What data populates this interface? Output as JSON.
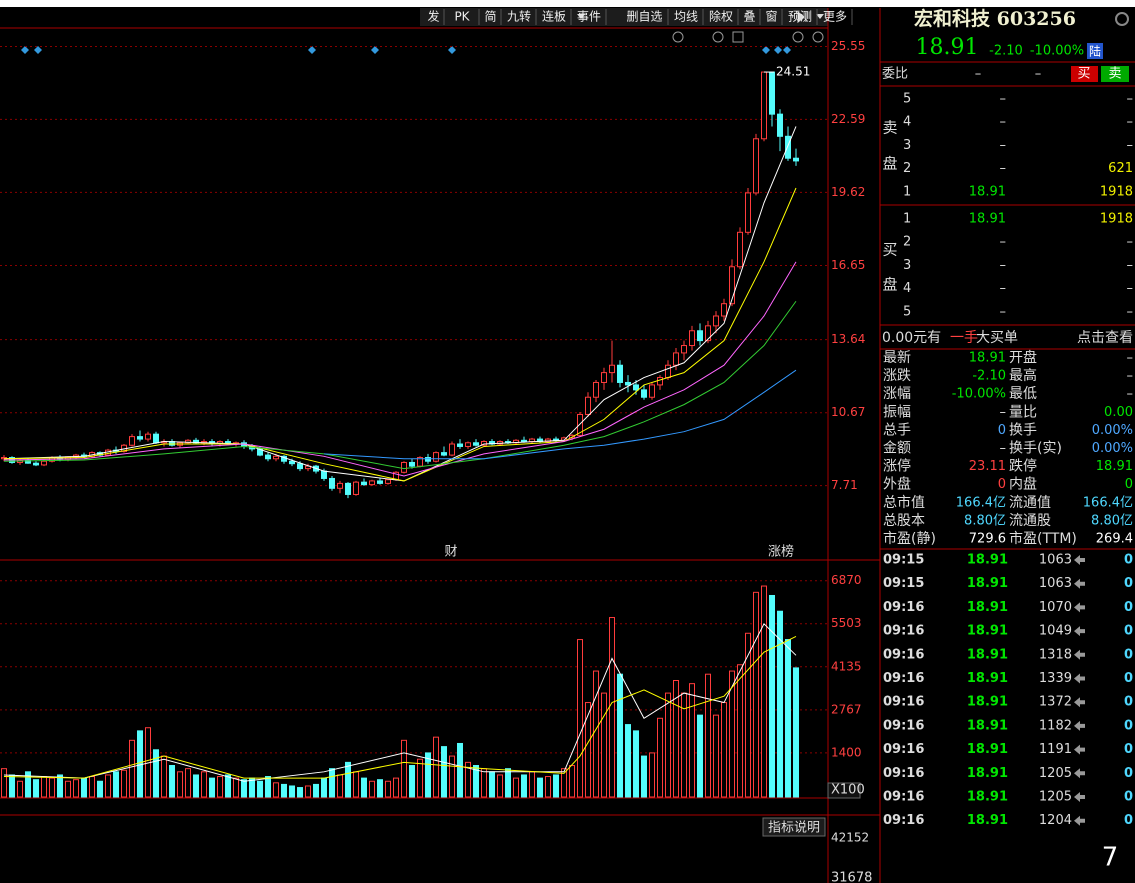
{
  "toolbar": [
    "发",
    "PK",
    "简",
    "九转",
    "连板",
    "事件",
    "删自选",
    "均线",
    "除权",
    "叠",
    "窗",
    "预测",
    "更多"
  ],
  "chart_data": [
    {
      "type": "candlestick",
      "ylim": [
        5.5,
        26.3
      ],
      "yticks": [
        25.55,
        22.59,
        19.62,
        16.65,
        13.64,
        10.67,
        7.71
      ],
      "up_color": "#ff3c3c",
      "down_color": "#54fcfc",
      "grid": true,
      "high_label": 24.51,
      "events": [
        "财",
        "涨榜"
      ],
      "candles": [
        [
          8.8,
          8.95,
          8.7,
          8.85
        ],
        [
          8.85,
          8.9,
          8.6,
          8.65
        ],
        [
          8.65,
          8.8,
          8.55,
          8.75
        ],
        [
          8.75,
          8.85,
          8.6,
          8.62
        ],
        [
          8.62,
          8.7,
          8.5,
          8.55
        ],
        [
          8.55,
          8.75,
          8.5,
          8.7
        ],
        [
          8.7,
          8.9,
          8.65,
          8.85
        ],
        [
          8.85,
          8.95,
          8.7,
          8.78
        ],
        [
          8.78,
          8.9,
          8.7,
          8.88
        ],
        [
          8.88,
          9.0,
          8.8,
          8.95
        ],
        [
          8.95,
          9.05,
          8.85,
          8.9
        ],
        [
          8.9,
          9.1,
          8.85,
          9.05
        ],
        [
          9.05,
          9.1,
          8.9,
          8.95
        ],
        [
          8.95,
          9.2,
          8.9,
          9.15
        ],
        [
          9.15,
          9.3,
          9.0,
          9.1
        ],
        [
          9.1,
          9.4,
          9.05,
          9.35
        ],
        [
          9.35,
          9.8,
          9.3,
          9.7
        ],
        [
          9.7,
          9.95,
          9.5,
          9.6
        ],
        [
          9.6,
          9.9,
          9.5,
          9.8
        ],
        [
          9.8,
          9.9,
          9.4,
          9.45
        ],
        [
          9.45,
          9.6,
          9.3,
          9.5
        ],
        [
          9.5,
          9.6,
          9.3,
          9.35
        ],
        [
          9.35,
          9.5,
          9.25,
          9.45
        ],
        [
          9.45,
          9.6,
          9.4,
          9.55
        ],
        [
          9.55,
          9.65,
          9.4,
          9.45
        ],
        [
          9.45,
          9.6,
          9.35,
          9.5
        ],
        [
          9.5,
          9.6,
          9.3,
          9.4
        ],
        [
          9.4,
          9.55,
          9.3,
          9.5
        ],
        [
          9.5,
          9.6,
          9.35,
          9.4
        ],
        [
          9.4,
          9.5,
          9.3,
          9.45
        ],
        [
          9.45,
          9.55,
          9.2,
          9.3
        ],
        [
          9.3,
          9.4,
          9.1,
          9.2
        ],
        [
          9.2,
          9.3,
          8.9,
          8.95
        ],
        [
          8.95,
          9.05,
          8.7,
          8.8
        ],
        [
          8.8,
          9.0,
          8.7,
          8.9
        ],
        [
          8.9,
          8.95,
          8.6,
          8.7
        ],
        [
          8.7,
          8.8,
          8.5,
          8.6
        ],
        [
          8.6,
          8.7,
          8.3,
          8.4
        ],
        [
          8.4,
          8.6,
          8.3,
          8.5
        ],
        [
          8.5,
          8.55,
          8.2,
          8.3
        ],
        [
          8.3,
          8.4,
          7.9,
          8.0
        ],
        [
          8.0,
          8.1,
          7.5,
          7.6
        ],
        [
          7.6,
          7.9,
          7.4,
          7.8
        ],
        [
          7.8,
          7.85,
          7.2,
          7.35
        ],
        [
          7.35,
          7.9,
          7.3,
          7.85
        ],
        [
          7.85,
          8.0,
          7.7,
          7.75
        ],
        [
          7.75,
          7.95,
          7.7,
          7.9
        ],
        [
          7.9,
          8.0,
          7.75,
          7.8
        ],
        [
          7.8,
          8.0,
          7.75,
          7.95
        ],
        [
          7.95,
          8.3,
          7.9,
          8.25
        ],
        [
          8.25,
          8.7,
          8.2,
          8.65
        ],
        [
          8.65,
          8.8,
          8.4,
          8.5
        ],
        [
          8.5,
          8.9,
          8.45,
          8.85
        ],
        [
          8.85,
          9.0,
          8.6,
          8.7
        ],
        [
          8.7,
          9.1,
          8.65,
          9.05
        ],
        [
          9.05,
          9.3,
          8.9,
          8.95
        ],
        [
          8.95,
          9.5,
          8.9,
          9.4
        ],
        [
          9.4,
          9.6,
          9.2,
          9.3
        ],
        [
          9.3,
          9.5,
          9.2,
          9.45
        ],
        [
          9.45,
          9.6,
          9.3,
          9.35
        ],
        [
          9.35,
          9.55,
          9.3,
          9.5
        ],
        [
          9.5,
          9.6,
          9.35,
          9.4
        ],
        [
          9.4,
          9.55,
          9.35,
          9.5
        ],
        [
          9.5,
          9.6,
          9.4,
          9.45
        ],
        [
          9.45,
          9.6,
          9.4,
          9.55
        ],
        [
          9.55,
          9.7,
          9.45,
          9.5
        ],
        [
          9.5,
          9.65,
          9.4,
          9.6
        ],
        [
          9.6,
          9.7,
          9.45,
          9.5
        ],
        [
          9.5,
          9.65,
          9.45,
          9.6
        ],
        [
          9.6,
          9.7,
          9.5,
          9.55
        ],
        [
          9.55,
          9.7,
          9.5,
          9.65
        ],
        [
          9.65,
          9.8,
          9.55,
          9.75
        ],
        [
          9.75,
          10.7,
          9.7,
          10.6
        ],
        [
          10.6,
          11.5,
          10.5,
          11.3
        ],
        [
          11.3,
          12.0,
          11.1,
          11.9
        ],
        [
          11.9,
          12.5,
          11.6,
          12.3
        ],
        [
          12.3,
          13.6,
          11.9,
          12.6
        ],
        [
          12.6,
          12.8,
          11.7,
          11.9
        ],
        [
          11.9,
          12.2,
          11.5,
          11.8
        ],
        [
          11.8,
          12.0,
          11.4,
          11.6
        ],
        [
          11.6,
          11.8,
          11.2,
          11.3
        ],
        [
          11.3,
          11.9,
          11.2,
          11.8
        ],
        [
          11.8,
          12.2,
          11.6,
          12.1
        ],
        [
          12.1,
          12.8,
          12.0,
          12.6
        ],
        [
          12.6,
          13.3,
          12.4,
          13.1
        ],
        [
          13.1,
          13.6,
          12.8,
          13.4
        ],
        [
          13.4,
          14.2,
          13.2,
          14.0
        ],
        [
          14.0,
          14.3,
          13.4,
          13.6
        ],
        [
          13.6,
          14.4,
          13.5,
          14.2
        ],
        [
          14.2,
          14.8,
          13.9,
          14.6
        ],
        [
          14.6,
          15.3,
          14.4,
          15.1
        ],
        [
          15.1,
          16.9,
          15.0,
          16.6
        ],
        [
          16.6,
          18.2,
          16.5,
          18.0
        ],
        [
          18.0,
          19.8,
          17.9,
          19.6
        ],
        [
          19.6,
          22.0,
          19.5,
          21.8
        ],
        [
          21.8,
          24.51,
          21.7,
          24.51
        ],
        [
          24.51,
          24.51,
          22.3,
          22.8
        ],
        [
          22.8,
          23.0,
          21.3,
          21.9
        ],
        [
          21.9,
          22.3,
          20.9,
          21.01
        ],
        [
          21.01,
          21.4,
          20.7,
          20.9
        ]
      ],
      "ma": [
        {
          "color": "#ffffff",
          "x": [
            0,
            10,
            20,
            30,
            40,
            50,
            60,
            70,
            75,
            80,
            85,
            90,
            95,
            99
          ],
          "values": [
            8.8,
            8.9,
            9.5,
            9.4,
            8.3,
            7.9,
            9.4,
            9.55,
            11.2,
            12.1,
            12.7,
            14.3,
            19.2,
            22.3
          ]
        },
        {
          "color": "#ffff00",
          "x": [
            0,
            10,
            20,
            30,
            40,
            50,
            60,
            70,
            75,
            80,
            85,
            90,
            95,
            99
          ],
          "values": [
            8.8,
            8.85,
            9.4,
            9.4,
            8.6,
            7.9,
            9.3,
            9.5,
            10.4,
            11.8,
            12.3,
            13.6,
            16.8,
            19.8
          ]
        },
        {
          "color": "#ff66ff",
          "x": [
            0,
            10,
            20,
            30,
            40,
            50,
            60,
            70,
            75,
            80,
            85,
            90,
            95,
            99
          ],
          "values": [
            8.75,
            8.8,
            9.2,
            9.4,
            8.9,
            8.1,
            9.0,
            9.5,
            10.0,
            10.9,
            11.6,
            12.6,
            14.6,
            16.8
          ]
        },
        {
          "color": "#33cc33",
          "x": [
            0,
            10,
            20,
            30,
            40,
            50,
            60,
            70,
            75,
            80,
            85,
            90,
            95,
            99
          ],
          "values": [
            8.7,
            8.75,
            9.0,
            9.3,
            9.0,
            8.4,
            8.8,
            9.35,
            9.7,
            10.3,
            11.0,
            11.9,
            13.4,
            15.2
          ]
        },
        {
          "color": "#3399ff",
          "x": [
            40,
            50,
            60,
            70,
            75,
            80,
            85,
            90,
            95,
            99
          ],
          "values": [
            9.0,
            8.8,
            8.8,
            9.2,
            9.35,
            9.6,
            9.9,
            10.4,
            11.5,
            12.4
          ]
        }
      ]
    },
    {
      "type": "bar",
      "ylim": [
        0,
        7400
      ],
      "yticks": [
        6870,
        5503,
        4135,
        2767,
        1400
      ],
      "unit": "X100",
      "grid": true,
      "values": [
        900,
        700,
        500,
        800,
        550,
        650,
        600,
        700,
        500,
        550,
        600,
        650,
        500,
        700,
        800,
        850,
        1800,
        2100,
        2200,
        1500,
        1300,
        1000,
        800,
        900,
        700,
        800,
        600,
        650,
        700,
        600,
        550,
        600,
        500,
        650,
        450,
        400,
        350,
        300,
        350,
        400,
        600,
        900,
        700,
        1100,
        800,
        600,
        500,
        550,
        500,
        600,
        1800,
        1000,
        1200,
        1400,
        1900,
        1600,
        1300,
        1700,
        1100,
        1000,
        900,
        800,
        700,
        900,
        600,
        700,
        800,
        600,
        650,
        700,
        900,
        1000,
        5000,
        3000,
        4000,
        3300,
        5700,
        3900,
        2300,
        2100,
        1300,
        1400,
        2500,
        3300,
        3700,
        3300,
        3600,
        2600,
        3900,
        2600,
        3000,
        4000,
        4200,
        5200,
        6500,
        6700,
        6400,
        5900,
        5000,
        4100
      ],
      "ma": [
        {
          "color": "#ffffff",
          "x": [
            0,
            10,
            20,
            30,
            40,
            50,
            60,
            70,
            72,
            76,
            80,
            85,
            90,
            95,
            99
          ],
          "values": [
            700,
            600,
            1200,
            500,
            800,
            1400,
            800,
            800,
            2000,
            4400,
            2500,
            3300,
            3000,
            5500,
            4500
          ]
        },
        {
          "color": "#ffff00",
          "x": [
            0,
            10,
            20,
            30,
            40,
            50,
            60,
            70,
            72,
            76,
            80,
            85,
            90,
            95,
            99
          ],
          "values": [
            650,
            600,
            1300,
            600,
            600,
            1100,
            900,
            750,
            1300,
            3000,
            3400,
            2800,
            3200,
            4600,
            5100
          ]
        }
      ]
    }
  ],
  "lower_panel": {
    "button": "指标说明",
    "labels": [
      "42152",
      "31678"
    ]
  },
  "quote": {
    "name": "宏和科技 603256",
    "price": "18.91",
    "change": "-2.10",
    "pct": "-10.00%",
    "market": "陆",
    "ratio_label": "委比",
    "ratio": [
      "–",
      "–"
    ],
    "buy": "买",
    "sell": "卖"
  },
  "sell_side": {
    "label": [
      "卖",
      "盘"
    ],
    "rows": [
      [
        "5",
        "–",
        "–"
      ],
      [
        "4",
        "–",
        "–"
      ],
      [
        "3",
        "–",
        "–"
      ],
      [
        "2",
        "–",
        "621"
      ],
      [
        "1",
        "18.91",
        "1918"
      ]
    ]
  },
  "buy_side": {
    "label": [
      "买",
      "盘"
    ],
    "rows": [
      [
        "1",
        "18.91",
        "1918"
      ],
      [
        "2",
        "–",
        "–"
      ],
      [
        "3",
        "–",
        "–"
      ],
      [
        "4",
        "–",
        "–"
      ],
      [
        "5",
        "–",
        "–"
      ]
    ]
  },
  "big_order": [
    "0.00元有",
    "一手",
    "大买单",
    "点击查看"
  ],
  "stats": [
    [
      "最新",
      "18.91",
      "开盘",
      "–"
    ],
    [
      "涨跌",
      "-2.10",
      "最高",
      "–"
    ],
    [
      "涨幅",
      "-10.00%",
      "最低",
      "–"
    ],
    [
      "振幅",
      "–",
      "量比",
      "0.00"
    ],
    [
      "总手",
      "0",
      "换手",
      "0.00%"
    ],
    [
      "金额",
      "–",
      "换手(实)",
      "0.00%"
    ],
    [
      "涨停",
      "23.11",
      "跌停",
      "18.91"
    ],
    [
      "外盘",
      "0",
      "内盘",
      "0"
    ],
    [
      "总市值",
      "166.4亿",
      "流通值",
      "166.4亿"
    ],
    [
      "总股本",
      "8.80亿",
      "流通股",
      "8.80亿"
    ],
    [
      "市盈(静)",
      "729.6",
      "市盈(TTM)",
      "269.4"
    ]
  ],
  "ticks": [
    [
      "09:15",
      "18.91",
      "1063",
      "0"
    ],
    [
      "09:15",
      "18.91",
      "1063",
      "0"
    ],
    [
      "09:16",
      "18.91",
      "1070",
      "0"
    ],
    [
      "09:16",
      "18.91",
      "1049",
      "0"
    ],
    [
      "09:16",
      "18.91",
      "1318",
      "0"
    ],
    [
      "09:16",
      "18.91",
      "1339",
      "0"
    ],
    [
      "09:16",
      "18.91",
      "1372",
      "0"
    ],
    [
      "09:16",
      "18.91",
      "1182",
      "0"
    ],
    [
      "09:16",
      "18.91",
      "1191",
      "0"
    ],
    [
      "09:16",
      "18.91",
      "1205",
      "0"
    ],
    [
      "09:16",
      "18.91",
      "1205",
      "0"
    ],
    [
      "09:16",
      "18.91",
      "1204",
      "0"
    ]
  ],
  "corner": "7"
}
